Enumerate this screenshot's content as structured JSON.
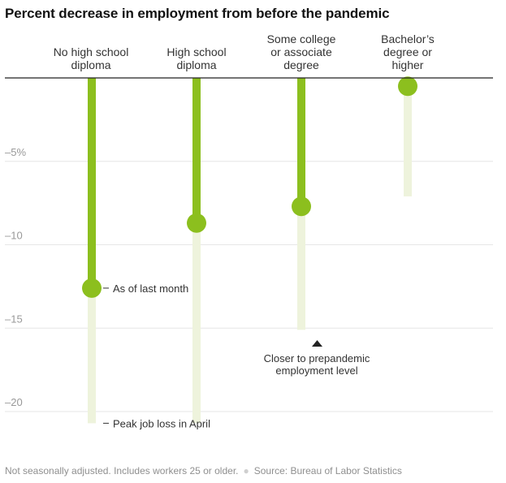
{
  "title": "Percent decrease in employment from before the pandemic",
  "footnote": {
    "note": "Not seasonally adjusted. Includes workers 25 or older.",
    "source": "Source: Bureau of Labor Statistics"
  },
  "colors": {
    "current": "#8cbf1e",
    "peak": "#eef3dc",
    "grid": "#e6e6e6",
    "axis": "#222222"
  },
  "chart_data": {
    "type": "bar",
    "title": "Percent decrease in employment from before the pandemic",
    "categories": [
      [
        "No high school",
        "diploma"
      ],
      [
        "High school",
        "diploma"
      ],
      [
        "Some college",
        "or associate",
        "degree"
      ],
      [
        "Bachelor’s",
        "degree or",
        "higher"
      ]
    ],
    "series": [
      {
        "name": "Peak job loss in April",
        "values": [
          -20.7,
          -20.7,
          -15.1,
          -7.1
        ]
      },
      {
        "name": "As of last month",
        "values": [
          -12.6,
          -8.7,
          -7.7,
          -0.5
        ]
      }
    ],
    "y_ticks": [
      {
        "value": -5,
        "label": "–5%"
      },
      {
        "value": -10,
        "label": "–10"
      },
      {
        "value": -15,
        "label": "–15"
      },
      {
        "value": -20,
        "label": "–20"
      }
    ],
    "ylim": [
      -21,
      0
    ],
    "grid": true,
    "annotations": {
      "current": "As of last month",
      "peak": "Peak job loss in April",
      "closer": [
        "Closer to prepandemic",
        "employment level"
      ]
    }
  }
}
